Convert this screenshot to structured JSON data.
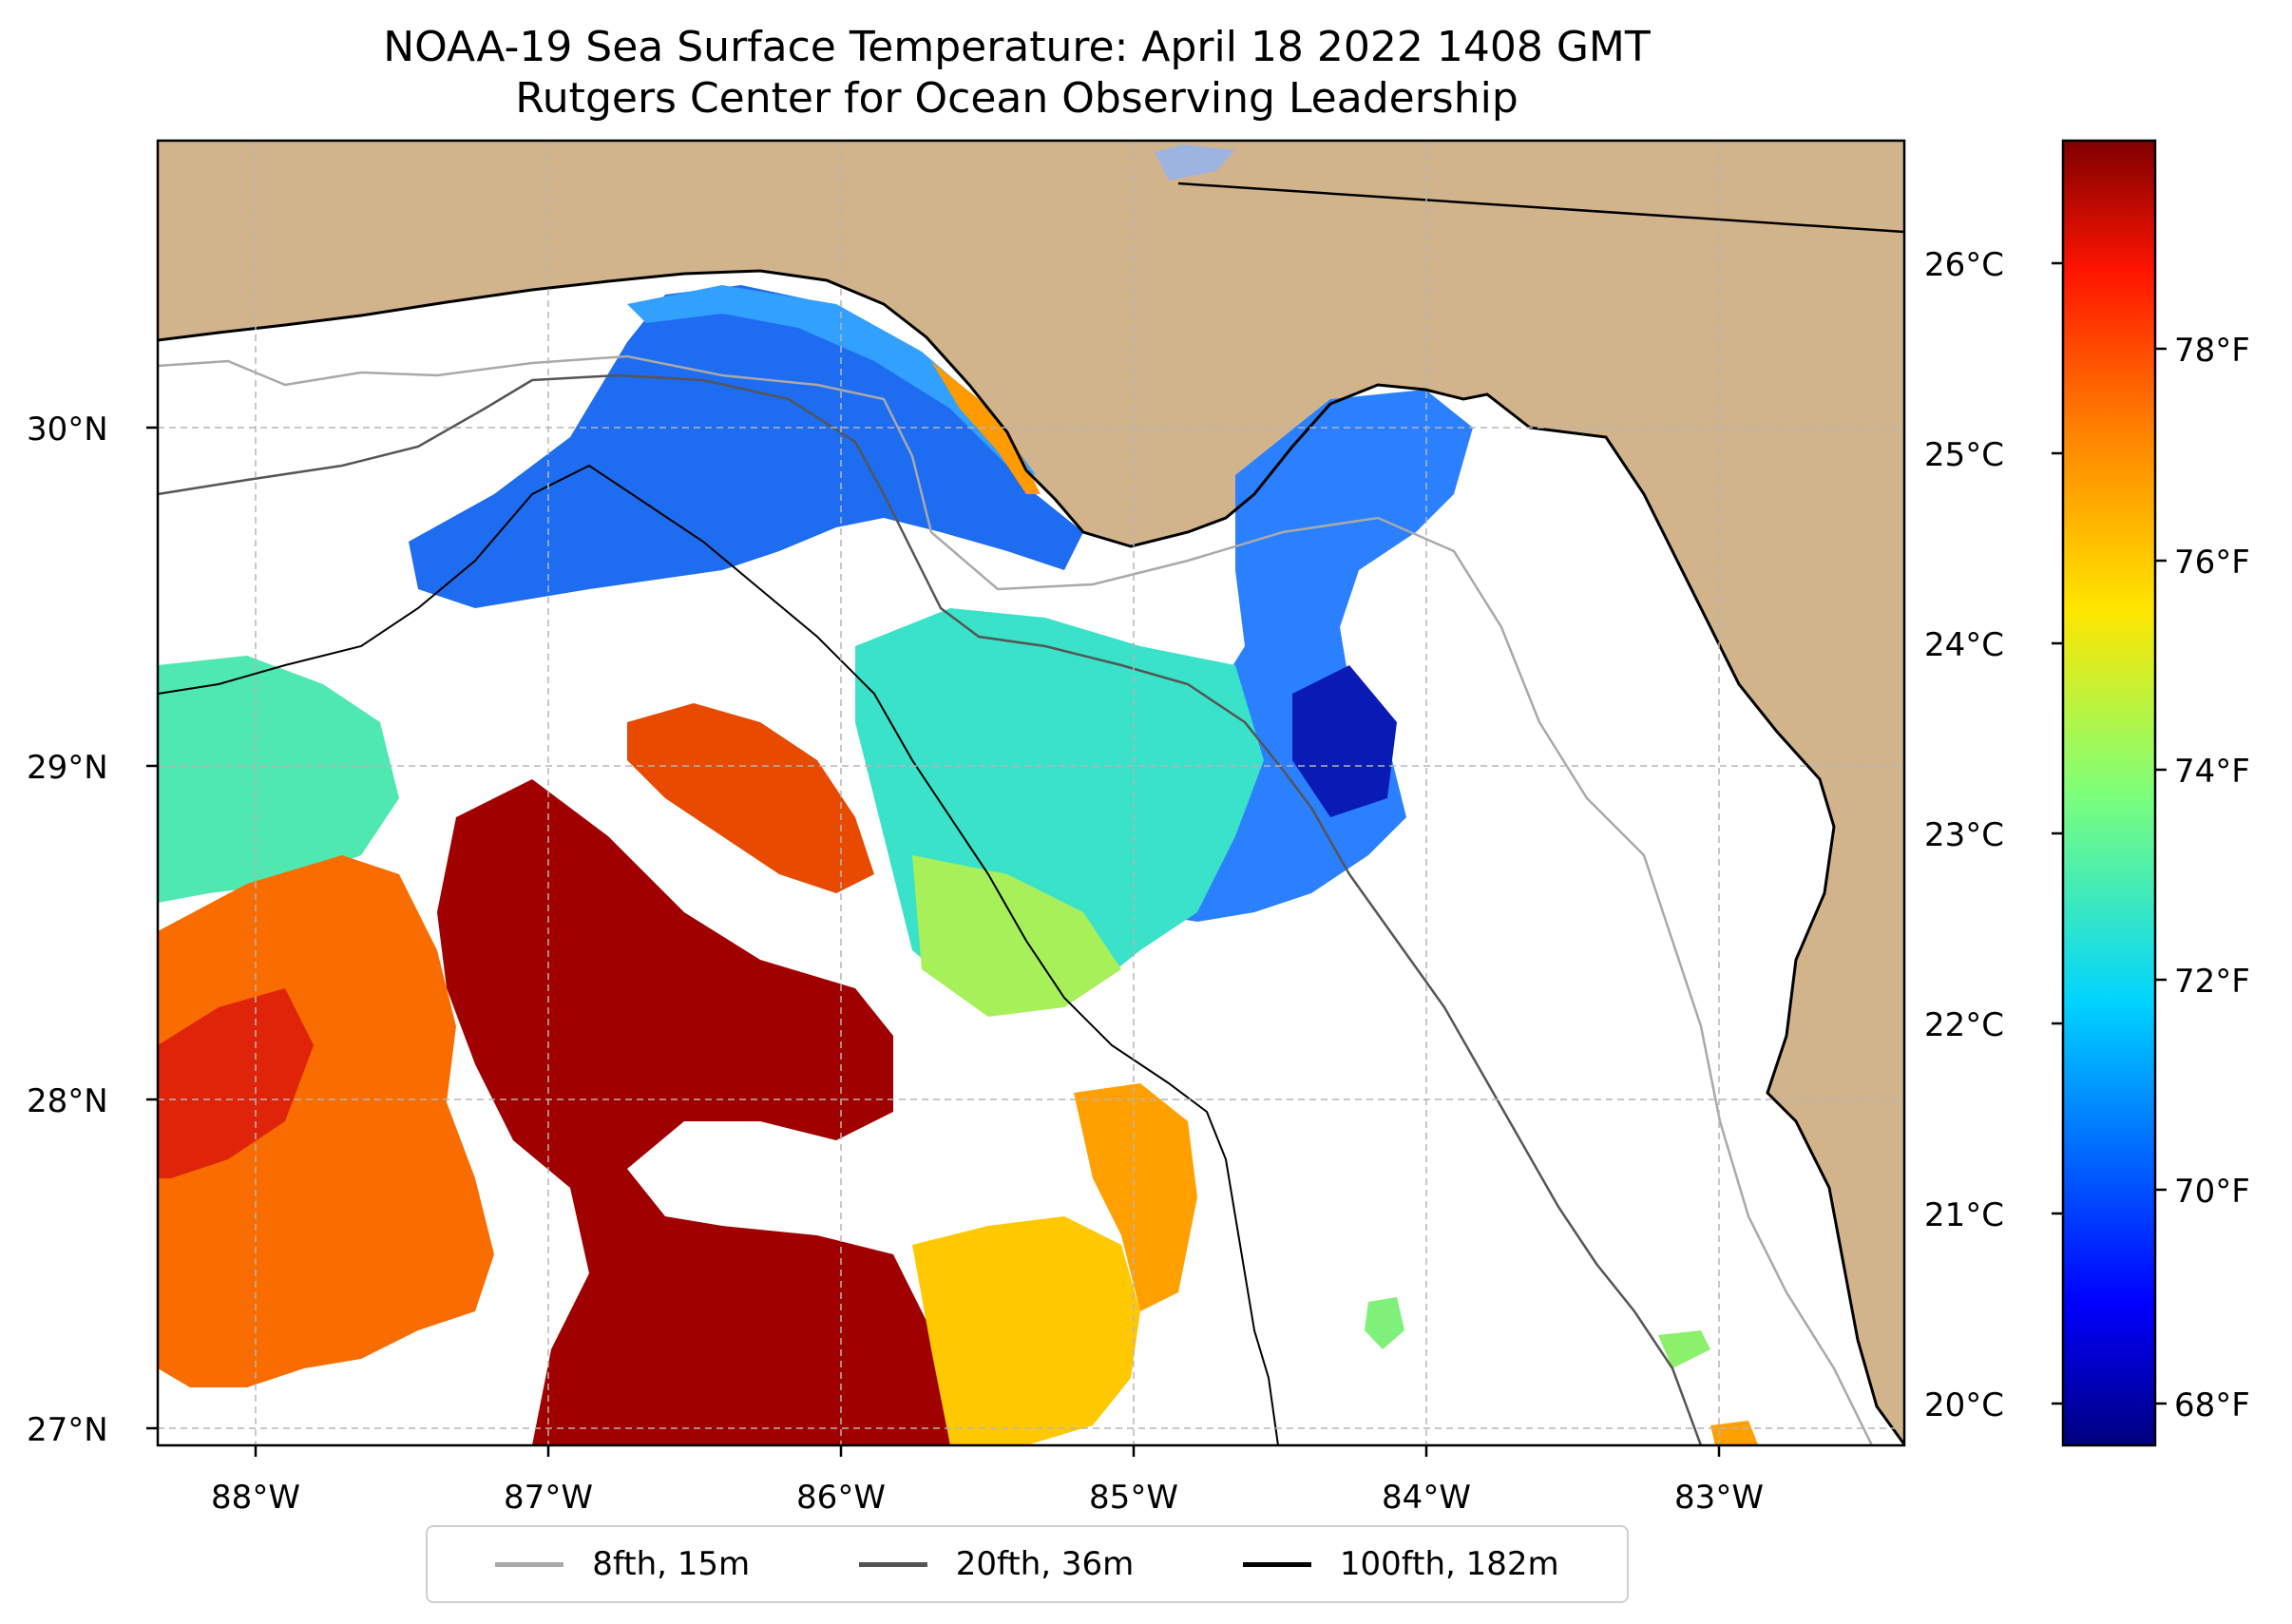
{
  "title": {
    "line1": "NOAA-19 Sea Surface Temperature: April 18 2022 1408 GMT",
    "line2": "Rutgers Center for Ocean Observing Leadership"
  },
  "map": {
    "land_color": "#d2b48c",
    "ocean_nodata_color": "#ffffff",
    "lat_labels": [
      "30°N",
      "29°N",
      "28°N",
      "27°N"
    ],
    "lon_labels": [
      "88°W",
      "87°W",
      "86°W",
      "85°W",
      "84°W",
      "83°W"
    ]
  },
  "colorbar": {
    "colormap": "jet",
    "celsius_labels": [
      "26°C",
      "25°C",
      "24°C",
      "23°C",
      "22°C",
      "21°C",
      "20°C"
    ],
    "fahrenheit_labels": [
      "78°F",
      "76°F",
      "74°F",
      "72°F",
      "70°F",
      "68°F"
    ],
    "colors": [
      "#00007f",
      "#0000ff",
      "#0080ff",
      "#00ffff",
      "#80ff80",
      "#ffff00",
      "#ff8000",
      "#ff0000",
      "#7f0000"
    ]
  },
  "legend": {
    "items": [
      {
        "label": "8fth, 15m",
        "color": "#a9a9a9"
      },
      {
        "label": "20fth, 36m",
        "color": "#555555"
      },
      {
        "label": "100fth, 182m",
        "color": "#000000"
      }
    ]
  }
}
